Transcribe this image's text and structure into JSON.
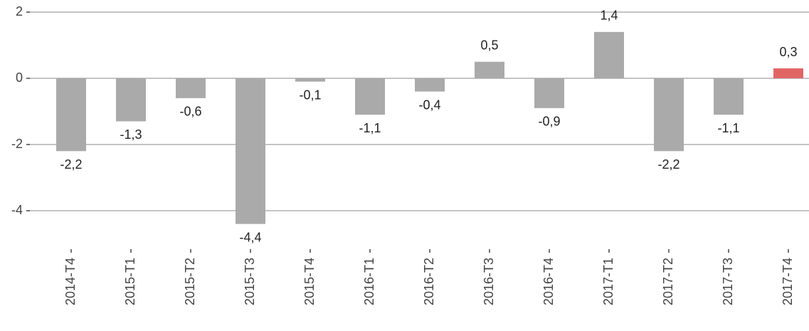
{
  "chart_data": {
    "type": "bar",
    "categories": [
      "2014-T4",
      "2015-T1",
      "2015-T2",
      "2015-T3",
      "2015-T4",
      "2016-T1",
      "2016-T2",
      "2016-T3",
      "2016-T4",
      "2017-T1",
      "2017-T2",
      "2017-T3",
      "2017-T4"
    ],
    "values": [
      -2.2,
      -1.3,
      -0.6,
      -4.4,
      -0.1,
      -1.1,
      -0.4,
      0.5,
      -0.9,
      1.4,
      -2.2,
      -1.1,
      0.3
    ],
    "value_labels": [
      "-2,2",
      "-1,3",
      "-0,6",
      "-4,4",
      "-0,1",
      "-1,1",
      "-0,4",
      "0,5",
      "-0,9",
      "1,4",
      "-2,2",
      "-1,1",
      "0,3"
    ],
    "colors": [
      "#aaaaaa",
      "#aaaaaa",
      "#aaaaaa",
      "#aaaaaa",
      "#aaaaaa",
      "#aaaaaa",
      "#aaaaaa",
      "#aaaaaa",
      "#aaaaaa",
      "#aaaaaa",
      "#aaaaaa",
      "#aaaaaa",
      "#e06666"
    ],
    "ylim": [
      -4.6,
      2.2
    ],
    "yticks": [
      -4,
      -2,
      0,
      2
    ],
    "grid": true
  }
}
